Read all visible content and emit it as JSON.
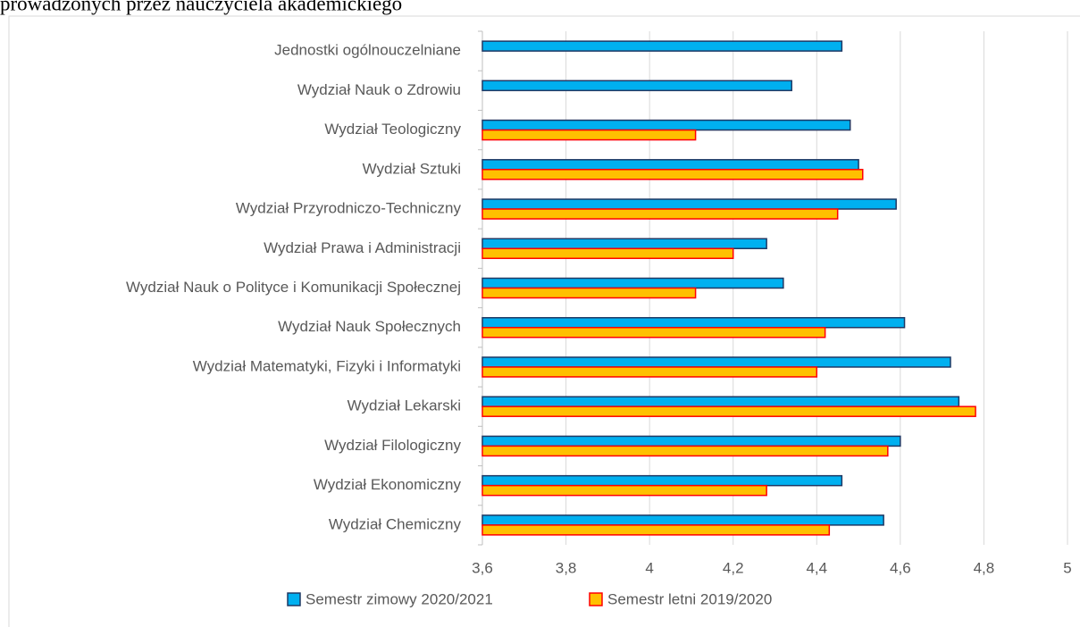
{
  "chart_data": {
    "type": "bar",
    "orientation": "horizontal",
    "title": "prowadzonych przez nauczyciela akademickiego",
    "categories": [
      "Jednostki ogólnouczelniane",
      "Wydział Nauk o Zdrowiu",
      "Wydział Teologiczny",
      "Wydział Sztuki",
      "Wydział Przyrodniczo-Techniczny",
      "Wydział Prawa i Administracji",
      "Wydział Nauk o Polityce i Komunikacji Społecznej",
      "Wydział Nauk Społecznych",
      "Wydział Matematyki, Fizyki i Informatyki",
      "Wydział Lekarski",
      "Wydział Filologiczny",
      "Wydział Ekonomiczny",
      "Wydział Chemiczny"
    ],
    "series": [
      {
        "name": "Semestr zimowy 2020/2021",
        "color": "#00b0f0",
        "edge_color": "#1f3864",
        "values": [
          4.46,
          4.34,
          4.48,
          4.5,
          4.59,
          4.28,
          4.32,
          4.61,
          4.72,
          4.74,
          4.6,
          4.46,
          4.56
        ]
      },
      {
        "name": "Semestr letni 2019/2020",
        "color": "#ffc000",
        "edge_color": "#ff0000",
        "values": [
          null,
          null,
          4.11,
          4.51,
          4.45,
          4.2,
          4.11,
          4.42,
          4.4,
          4.78,
          4.57,
          4.28,
          4.43
        ]
      }
    ],
    "xlim": [
      3.6,
      5
    ],
    "xticks": [
      {
        "value": 3.6,
        "label": "3,6"
      },
      {
        "value": 3.8,
        "label": "3,8"
      },
      4,
      {
        "value": 4.2,
        "label": "4,2"
      },
      {
        "value": 4.4,
        "label": "4,4"
      },
      {
        "value": 4.6,
        "label": "4,6"
      },
      {
        "value": 4.8,
        "label": "4,8"
      },
      5
    ],
    "grid": true,
    "legend": "bottom"
  }
}
